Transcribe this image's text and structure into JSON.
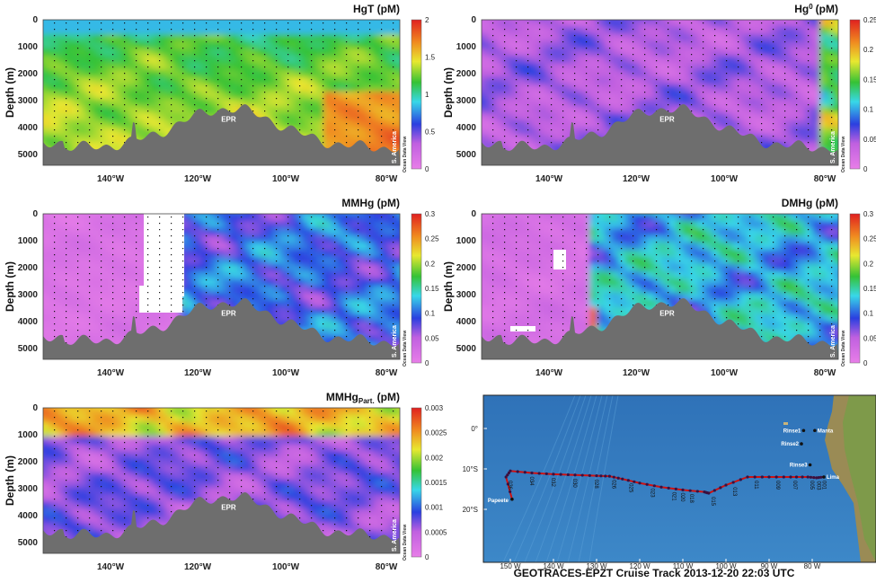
{
  "panels": [
    {
      "title": "HgT (pM)",
      "y_axis_label": "Depth (m)",
      "yticks": [
        "0",
        "1000",
        "2000",
        "3000",
        "4000",
        "5000"
      ],
      "xticks": [
        "140°W",
        "120°W",
        "100°W",
        "80°W"
      ],
      "colorbar_ticks": [
        "0",
        "0.5",
        "1",
        "1.5",
        "2"
      ],
      "ridge_label": "EPR",
      "coast_label": "S. America",
      "software_label": "Ocean Data View"
    },
    {
      "title": "Hg",
      "superscript": "0",
      "unit": "(pM)",
      "y_axis_label": "Depth (m)",
      "yticks": [
        "0",
        "1000",
        "2000",
        "3000",
        "4000",
        "5000"
      ],
      "xticks": [
        "140°W",
        "120°W",
        "100°W",
        "80°W"
      ],
      "colorbar_ticks": [
        "0",
        "0.05",
        "0.1",
        "0.15",
        "0.2",
        "0.25"
      ],
      "ridge_label": "EPR",
      "coast_label": "S. America",
      "software_label": "Ocean Data View"
    },
    {
      "title": "MMHg (pM)",
      "y_axis_label": "Depth (m)",
      "yticks": [
        "0",
        "1000",
        "2000",
        "3000",
        "4000",
        "5000"
      ],
      "xticks": [
        "140°W",
        "120°W",
        "100°W",
        "80°W"
      ],
      "colorbar_ticks": [
        "0",
        "0.05",
        "0.1",
        "0.15",
        "0.2",
        "0.25",
        "0.3"
      ],
      "ridge_label": "EPR",
      "coast_label": "S. America",
      "software_label": "Ocean Data View"
    },
    {
      "title": "DMHg (pM)",
      "y_axis_label": "Depth (m)",
      "yticks": [
        "0",
        "1000",
        "2000",
        "3000",
        "4000",
        "5000"
      ],
      "xticks": [
        "140°W",
        "120°W",
        "100°W",
        "80°W"
      ],
      "colorbar_ticks": [
        "0",
        "0.05",
        "0.1",
        "0.15",
        "0.2",
        "0.25",
        "0.3"
      ],
      "ridge_label": "EPR",
      "coast_label": "S. America",
      "software_label": "Ocean Data View"
    },
    {
      "title": "MMHg",
      "subscript": "Part.",
      "unit": "(pM)",
      "y_axis_label": "Depth (m)",
      "yticks": [
        "0",
        "1000",
        "2000",
        "3000",
        "4000",
        "5000"
      ],
      "xticks": [
        "140°W",
        "120°W",
        "100°W",
        "80°W"
      ],
      "colorbar_ticks": [
        "0",
        "0.0005",
        "0.001",
        "0.0015",
        "0.002",
        "0.0025",
        "0.003"
      ],
      "ridge_label": "EPR",
      "coast_label": "S. America",
      "software_label": "Ocean Data View"
    }
  ],
  "map": {
    "title": "GEOTRACES-EPZT Cruise Track 2013-12-20 22:03 UTC",
    "lon_ticks": [
      "150 W",
      "140 W",
      "130 W",
      "120 W",
      "110 W",
      "100 W",
      "90 W",
      "80 W"
    ],
    "lat_ticks": [
      "0°",
      "10°S",
      "20°S"
    ],
    "places": [
      "Papeete",
      "Rinse1",
      "Manta",
      "Rinse2",
      "Rinse3",
      "Lima"
    ],
    "stations": [
      "036",
      "034",
      "032",
      "030",
      "028",
      "026",
      "025",
      "023",
      "021",
      "020",
      "018",
      "015",
      "013",
      "011",
      "009",
      "007",
      "005",
      "003",
      "001"
    ]
  }
}
